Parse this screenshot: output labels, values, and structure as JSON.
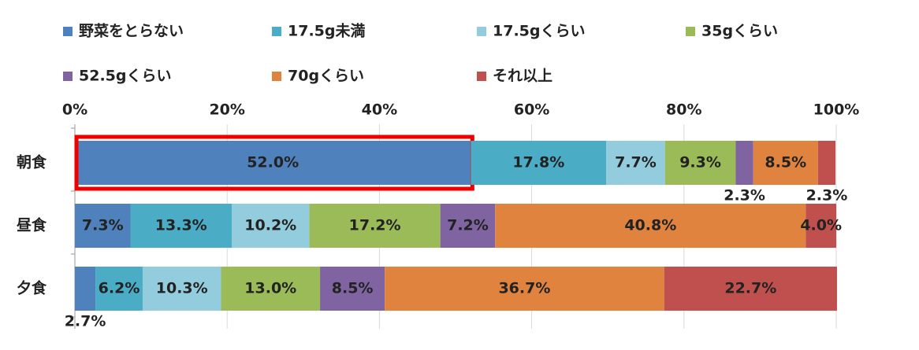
{
  "chart_data": {
    "type": "stacked-bar-horizontal",
    "categories": [
      "朝食",
      "昼食",
      "夕食"
    ],
    "series": [
      {
        "name": "野菜をとらない",
        "color": "#4f81bd",
        "values": [
          52.0,
          7.3,
          2.7
        ],
        "value_labels": [
          "52.0%",
          "7.3%",
          "2.7%"
        ]
      },
      {
        "name": "17.5g未満",
        "color": "#4bacc6",
        "values": [
          17.8,
          13.3,
          6.2
        ],
        "value_labels": [
          "17.8%",
          "13.3%",
          "6.2%"
        ]
      },
      {
        "name": "17.5gくらい",
        "color": "#93cddd",
        "values": [
          7.7,
          10.2,
          10.3
        ],
        "value_labels": [
          "7.7%",
          "10.2%",
          "10.3%"
        ]
      },
      {
        "name": "35gくらい",
        "color": "#9bbb59",
        "values": [
          9.3,
          17.2,
          13.0
        ],
        "value_labels": [
          "9.3%",
          "17.2%",
          "13.0%"
        ]
      },
      {
        "name": "52.5gくらい",
        "color": "#8064a2",
        "values": [
          2.3,
          7.2,
          8.5
        ],
        "value_labels": [
          "2.3%",
          "7.2%",
          "8.5%"
        ]
      },
      {
        "name": "70gくらい",
        "color": "#e0833f",
        "values": [
          8.5,
          40.8,
          36.7
        ],
        "value_labels": [
          "8.5%",
          "40.8%",
          "36.7%"
        ]
      },
      {
        "name": "それ以上",
        "color": "#c0504d",
        "values": [
          2.3,
          4.0,
          22.7
        ],
        "value_labels": [
          "2.3%",
          "4.0%",
          "22.7%"
        ]
      }
    ],
    "xlim": [
      0,
      100
    ],
    "xticks": [
      {
        "value": 0,
        "label": "0%"
      },
      {
        "value": 20,
        "label": "20%"
      },
      {
        "value": 40,
        "label": "40%"
      },
      {
        "value": 60,
        "label": "60%"
      },
      {
        "value": 80,
        "label": "80%"
      },
      {
        "value": 100,
        "label": "100%"
      }
    ],
    "grid": true
  }
}
